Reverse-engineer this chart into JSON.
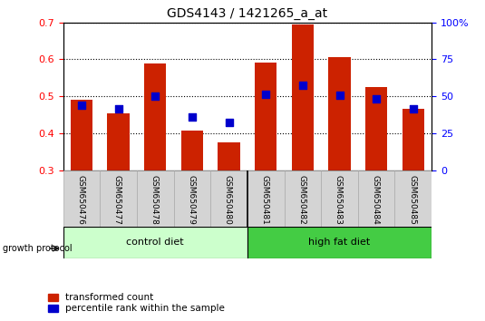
{
  "title": "GDS4143 / 1421265_a_at",
  "samples": [
    "GSM650476",
    "GSM650477",
    "GSM650478",
    "GSM650479",
    "GSM650480",
    "GSM650481",
    "GSM650482",
    "GSM650483",
    "GSM650484",
    "GSM650485"
  ],
  "transformed_count": [
    0.49,
    0.455,
    0.59,
    0.408,
    0.376,
    0.592,
    0.695,
    0.605,
    0.525,
    0.465
  ],
  "percentile_rank": [
    0.475,
    0.465,
    0.5,
    0.445,
    0.43,
    0.505,
    0.53,
    0.503,
    0.492,
    0.467
  ],
  "bar_bottom": 0.3,
  "ylim_left": [
    0.3,
    0.7
  ],
  "ylim_right": [
    0,
    100
  ],
  "yticks_left": [
    0.3,
    0.4,
    0.5,
    0.6,
    0.7
  ],
  "yticks_right": [
    0,
    25,
    50,
    75,
    100
  ],
  "bar_color": "#cc2200",
  "dot_color": "#0000cc",
  "grid_color": "#000000",
  "control_label": "control diet",
  "high_fat_label": "high fat diet",
  "control_color": "#ccffcc",
  "high_fat_color": "#44cc44",
  "group_label": "growth protocol",
  "legend_tc": "transformed count",
  "legend_pr": "percentile rank within the sample",
  "bar_width": 0.6,
  "dot_size": 28,
  "label_bg_color": "#d4d4d4",
  "label_border_color": "#aaaaaa"
}
